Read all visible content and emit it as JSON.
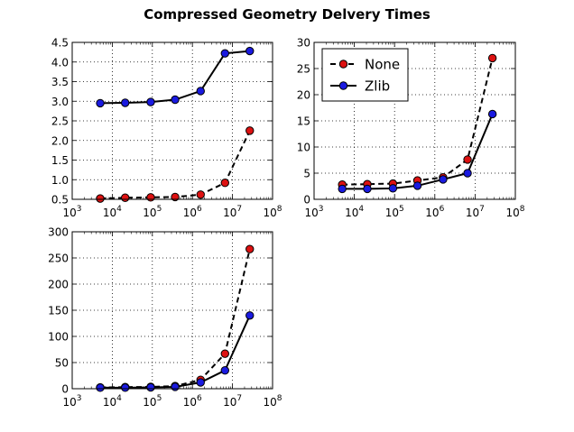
{
  "figure": {
    "title": "Compressed Geometry Delvery Times"
  },
  "colors": {
    "none_marker": "#dd1111",
    "zlib_marker": "#1a1ae0",
    "line": "#000000",
    "grid": "#000000"
  },
  "chart_data": [
    {
      "type": "line",
      "xscale": "log",
      "xlim": [
        1000,
        100000000
      ],
      "ylim": [
        0.5,
        4.5
      ],
      "grid": true,
      "legend": null,
      "x_tick_labels": [
        "10^3",
        "10^4",
        "10^5",
        "10^6",
        "10^7",
        "10^8"
      ],
      "y_tick_labels": [
        "0.5",
        "1.0",
        "1.5",
        "2.0",
        "2.5",
        "3.0",
        "3.5",
        "4.0",
        "4.5"
      ],
      "y_ticks": [
        0.5,
        1.0,
        1.5,
        2.0,
        2.5,
        3.0,
        3.5,
        4.0,
        4.5
      ],
      "series": [
        {
          "style": "dashed",
          "marker": "none_marker",
          "x": [
            5000,
            21000,
            91000,
            370000,
            1600000,
            6500000,
            27000000
          ],
          "y": [
            0.52,
            0.54,
            0.55,
            0.56,
            0.62,
            0.92,
            2.25
          ]
        },
        {
          "style": "solid",
          "marker": "zlib_marker",
          "x": [
            5000,
            21000,
            91000,
            370000,
            1600000,
            6500000,
            27000000
          ],
          "y": [
            2.95,
            2.96,
            2.98,
            3.04,
            3.26,
            4.22,
            4.28
          ]
        }
      ]
    },
    {
      "type": "line",
      "xscale": "log",
      "xlim": [
        1000,
        100000000
      ],
      "ylim": [
        0,
        30
      ],
      "grid": true,
      "legend": "top-left",
      "x_tick_labels": [
        "10^3",
        "10^4",
        "10^5",
        "10^6",
        "10^7",
        "10^8"
      ],
      "y_tick_labels": [
        "0",
        "5",
        "10",
        "15",
        "20",
        "25",
        "30"
      ],
      "y_ticks": [
        0,
        5,
        10,
        15,
        20,
        25,
        30
      ],
      "series": [
        {
          "name": "None",
          "style": "dashed",
          "marker": "none_marker",
          "x": [
            5000,
            21000,
            91000,
            370000,
            1600000,
            6500000,
            27000000
          ],
          "y": [
            2.8,
            2.9,
            3.0,
            3.6,
            4.2,
            7.6,
            27.0
          ]
        },
        {
          "name": "Zlib",
          "style": "solid",
          "marker": "zlib_marker",
          "x": [
            5000,
            21000,
            91000,
            370000,
            1600000,
            6500000,
            27000000
          ],
          "y": [
            2.0,
            2.0,
            2.1,
            2.6,
            3.8,
            5.0,
            16.3
          ]
        }
      ]
    },
    {
      "type": "line",
      "xscale": "log",
      "xlim": [
        1000,
        100000000
      ],
      "ylim": [
        0,
        300
      ],
      "grid": true,
      "legend": null,
      "x_tick_labels": [
        "10^3",
        "10^4",
        "10^5",
        "10^6",
        "10^7",
        "10^8"
      ],
      "y_tick_labels": [
        "0",
        "50",
        "100",
        "150",
        "200",
        "250",
        "300"
      ],
      "y_ticks": [
        0,
        50,
        100,
        150,
        200,
        250,
        300
      ],
      "series": [
        {
          "style": "dashed",
          "marker": "none_marker",
          "x": [
            5000,
            21000,
            91000,
            370000,
            1600000,
            6500000,
            27000000
          ],
          "y": [
            2.5,
            3,
            3.5,
            5,
            17,
            67,
            267
          ]
        },
        {
          "style": "solid",
          "marker": "zlib_marker",
          "x": [
            5000,
            21000,
            91000,
            370000,
            1600000,
            6500000,
            27000000
          ],
          "y": [
            2,
            2,
            2.5,
            3.5,
            12,
            35,
            140
          ]
        }
      ]
    }
  ]
}
